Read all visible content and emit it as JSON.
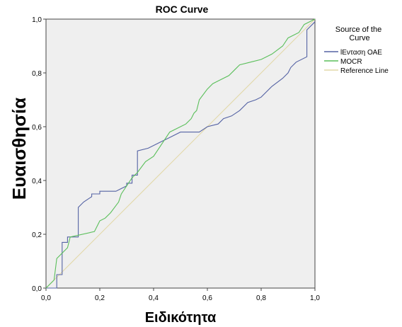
{
  "chart_data": {
    "type": "line",
    "title": "ROC Curve",
    "xlabel": "Ειδικότητα",
    "ylabel": "Ευαισθησία",
    "xlim": [
      0,
      1
    ],
    "ylim": [
      0,
      1
    ],
    "xticks": [
      "0,0",
      "0,2",
      "0,4",
      "0,6",
      "0,8",
      "1,0"
    ],
    "yticks": [
      "0,0",
      "0,2",
      "0,4",
      "0,6",
      "0,8",
      "1,0"
    ],
    "grid": false,
    "legend": {
      "title": "Source of the Curve",
      "title_lines": [
        "Source of the",
        "Curve"
      ],
      "placement": "right"
    },
    "background": "#efefef",
    "series": [
      {
        "name": "lΕνταση ΟΑΕ",
        "color": "#5563a4",
        "x": [
          0,
          0.04,
          0.04,
          0.06,
          0.06,
          0.08,
          0.08,
          0.12,
          0.12,
          0.14,
          0.17,
          0.17,
          0.2,
          0.2,
          0.26,
          0.28,
          0.3,
          0.3,
          0.32,
          0.32,
          0.34,
          0.34,
          0.38,
          0.42,
          0.46,
          0.5,
          0.54,
          0.57,
          0.6,
          0.64,
          0.66,
          0.69,
          0.72,
          0.75,
          0.78,
          0.8,
          0.84,
          0.88,
          0.9,
          0.91,
          0.93,
          0.97,
          0.97,
          1.0
        ],
        "y": [
          0,
          0,
          0.05,
          0.05,
          0.17,
          0.17,
          0.19,
          0.19,
          0.3,
          0.32,
          0.34,
          0.35,
          0.35,
          0.36,
          0.36,
          0.37,
          0.38,
          0.39,
          0.39,
          0.42,
          0.42,
          0.51,
          0.52,
          0.54,
          0.56,
          0.58,
          0.58,
          0.58,
          0.6,
          0.61,
          0.63,
          0.64,
          0.66,
          0.69,
          0.7,
          0.71,
          0.75,
          0.78,
          0.8,
          0.82,
          0.84,
          0.86,
          0.96,
          0.99
        ]
      },
      {
        "name": "MOCR",
        "color": "#5abf5a",
        "x": [
          0,
          0.03,
          0.04,
          0.08,
          0.09,
          0.18,
          0.19,
          0.2,
          0.22,
          0.24,
          0.27,
          0.28,
          0.32,
          0.34,
          0.37,
          0.4,
          0.42,
          0.46,
          0.52,
          0.54,
          0.55,
          0.56,
          0.57,
          0.6,
          0.62,
          0.64,
          0.68,
          0.7,
          0.72,
          0.76,
          0.8,
          0.84,
          0.88,
          0.9,
          0.94,
          0.96,
          1.0
        ],
        "y": [
          0,
          0.03,
          0.11,
          0.15,
          0.19,
          0.21,
          0.23,
          0.25,
          0.26,
          0.28,
          0.32,
          0.35,
          0.41,
          0.43,
          0.47,
          0.49,
          0.52,
          0.58,
          0.61,
          0.63,
          0.65,
          0.66,
          0.7,
          0.74,
          0.76,
          0.77,
          0.79,
          0.81,
          0.83,
          0.84,
          0.85,
          0.87,
          0.9,
          0.93,
          0.95,
          0.98,
          1.0
        ]
      },
      {
        "name": "Reference Line",
        "color": "#e2d8a8",
        "x": [
          0,
          1
        ],
        "y": [
          0,
          1
        ]
      }
    ]
  }
}
